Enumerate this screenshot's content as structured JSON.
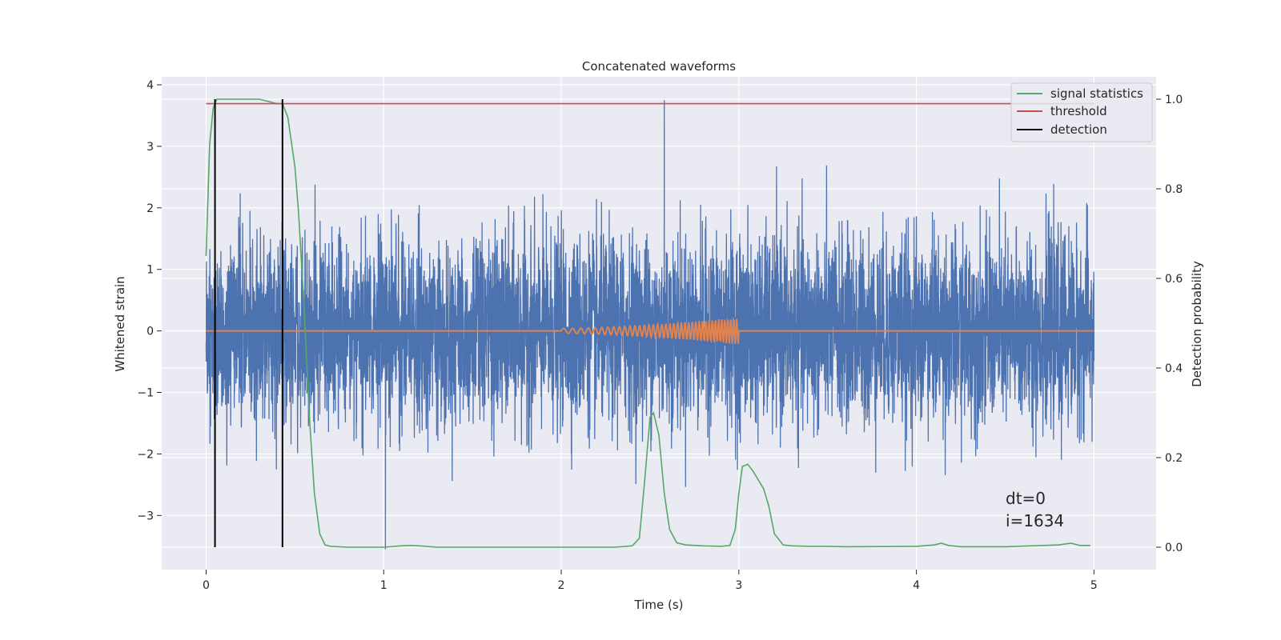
{
  "chart_data": {
    "type": "line",
    "title": "Concatenated waveforms",
    "xlabel": "Time (s)",
    "ylabel": "Whitened strain",
    "y2label": "Detection probability",
    "xlim": [
      -0.25,
      5.35
    ],
    "ylim": [
      -3.88,
      4.13
    ],
    "y2lim": [
      -0.05,
      1.05
    ],
    "xticks": [
      0,
      1,
      2,
      3,
      4,
      5
    ],
    "xtick_labels": [
      "0",
      "1",
      "2",
      "3",
      "4",
      "5"
    ],
    "yticks": [
      -3,
      -2,
      -1,
      0,
      1,
      2,
      3,
      4
    ],
    "ytick_labels": [
      "−3",
      "−2",
      "−1",
      "0",
      "1",
      "2",
      "3",
      "4"
    ],
    "y2ticks": [
      0.0,
      0.2,
      0.4,
      0.6,
      0.8,
      1.0
    ],
    "y2tick_labels": [
      "0.0",
      "0.2",
      "0.4",
      "0.6",
      "0.8",
      "1.0"
    ],
    "grid": true,
    "legend_position": "top-right",
    "legend": [
      {
        "label": "signal statistics",
        "color": "#55a868"
      },
      {
        "label": "threshold",
        "color": "#c44e52"
      },
      {
        "label": "detection",
        "color": "#000000"
      }
    ],
    "series": [
      {
        "kind": "noise",
        "color": "#4c72b0",
        "x_range": [
          0,
          5
        ],
        "sigma": 0.75,
        "peak_max": 3.75,
        "peak_min": -3.55,
        "peak_max_t": 2.58,
        "peak_min_t": 1.01
      },
      {
        "kind": "chirp",
        "color": "#dd8452",
        "x_range": [
          0,
          5
        ],
        "chirp_start": 2.0,
        "chirp_end": 3.0,
        "start_amplitude": 0.04,
        "end_amplitude": 0.22
      },
      {
        "name": "signal statistics",
        "axis": "right",
        "color": "#55a868",
        "x": [
          0,
          0.02,
          0.04,
          0.06,
          0.08,
          0.1,
          0.2,
          0.3,
          0.4,
          0.43,
          0.46,
          0.5,
          0.52,
          0.55,
          0.58,
          0.61,
          0.64,
          0.67,
          0.7,
          0.8,
          0.9,
          1.0,
          1.1,
          1.15,
          1.2,
          1.3,
          1.5,
          2.0,
          2.3,
          2.4,
          2.44,
          2.47,
          2.5,
          2.52,
          2.55,
          2.58,
          2.61,
          2.65,
          2.7,
          2.8,
          2.9,
          2.95,
          2.98,
          3.0,
          3.02,
          3.05,
          3.08,
          3.11,
          3.14,
          3.17,
          3.2,
          3.25,
          3.3,
          3.4,
          3.5,
          3.6,
          4.0,
          4.1,
          4.14,
          4.18,
          4.25,
          4.5,
          4.8,
          4.87,
          4.92,
          4.98
        ],
        "y": [
          0.65,
          0.9,
          0.98,
          1.0,
          1.0,
          1.0,
          1.0,
          1.0,
          0.99,
          0.99,
          0.96,
          0.85,
          0.75,
          0.55,
          0.3,
          0.12,
          0.03,
          0.005,
          0.002,
          0.0,
          0.0,
          0.0,
          0.003,
          0.004,
          0.003,
          0.0,
          0.0,
          0.0,
          0.0,
          0.003,
          0.02,
          0.15,
          0.29,
          0.3,
          0.25,
          0.12,
          0.04,
          0.01,
          0.005,
          0.003,
          0.002,
          0.004,
          0.04,
          0.12,
          0.18,
          0.185,
          0.17,
          0.15,
          0.13,
          0.09,
          0.03,
          0.005,
          0.003,
          0.002,
          0.002,
          0.001,
          0.002,
          0.005,
          0.009,
          0.004,
          0.001,
          0.001,
          0.005,
          0.009,
          0.004,
          0.004
        ]
      },
      {
        "name": "threshold",
        "axis": "right",
        "color": "#c44e52",
        "x": [
          0,
          5
        ],
        "y": [
          0.99,
          0.99
        ]
      }
    ],
    "detections": [
      {
        "x": 0.05,
        "color": "#000000"
      },
      {
        "x": 0.43,
        "color": "#000000"
      }
    ],
    "detection_span": [
      0.0,
      1.0
    ],
    "annotation": {
      "lines": [
        "dt=0",
        "i=1634"
      ]
    }
  }
}
